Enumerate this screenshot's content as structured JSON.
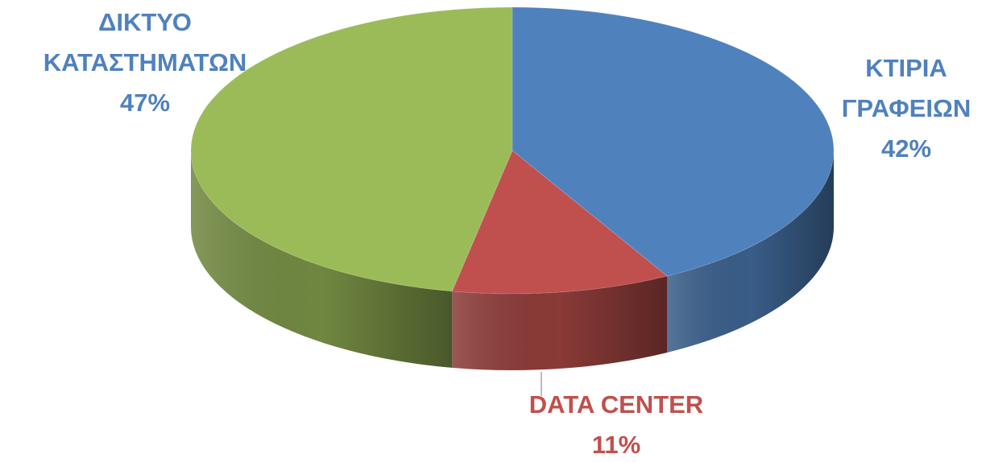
{
  "chart_data": {
    "type": "pie",
    "categories": [
      "ΚΤΙΡΙΑ ΓΡΑΦΕΙΩΝ",
      "DATA CENTER",
      "ΔΙΚΤΥΟ ΚΑΤΑΣΤΗΜΑΤΩΝ"
    ],
    "values": [
      42,
      11,
      47
    ],
    "value_labels": [
      "42%",
      "11%",
      "47%"
    ],
    "colors": [
      "#4f81bd",
      "#c0504d",
      "#9bbb59"
    ]
  }
}
